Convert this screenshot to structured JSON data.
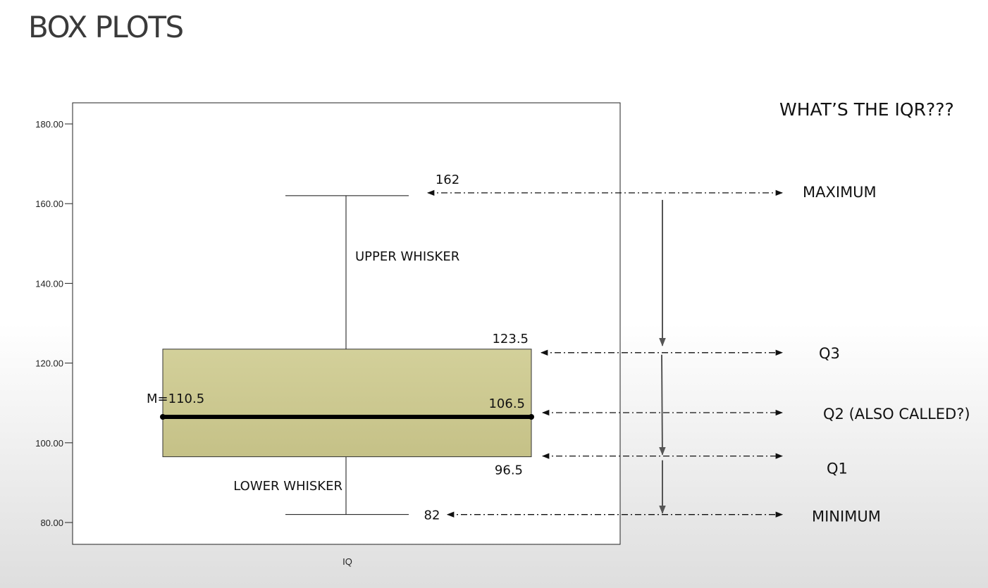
{
  "slide": {
    "title": "BOX PLOTS"
  },
  "question": "WHAT’S THE IQR???",
  "colors": {
    "box_fill": "#cdc990",
    "median_line": "#000000",
    "arrows": "#111111",
    "connector": "#555555"
  },
  "chart_data": {
    "type": "box",
    "categories": [
      "IQ"
    ],
    "ylim": [
      75,
      185
    ],
    "yticks": [
      80,
      100,
      120,
      140,
      160,
      180
    ],
    "ytick_labels": [
      "80.00",
      "100.00",
      "120.00",
      "140.00",
      "160.00",
      "180.00"
    ],
    "series": [
      {
        "category": "IQ",
        "min": 82,
        "q1": 96.5,
        "median": 106.5,
        "q3": 123.5,
        "max": 162
      }
    ],
    "annotations": {
      "max_value": "162",
      "q3_value": "123.5",
      "median_value": "106.5",
      "q1_value": "96.5",
      "min_value": "82",
      "mean_label": "M=110.5",
      "upper_whisker": "UPPER WHISKER",
      "lower_whisker": "LOWER WHISKER"
    },
    "side_labels": {
      "maximum": "MAXIMUM",
      "q3": "Q3",
      "q2": "Q2 (ALSO CALLED?)",
      "q1": "Q1",
      "minimum": "MINIMUM"
    }
  }
}
